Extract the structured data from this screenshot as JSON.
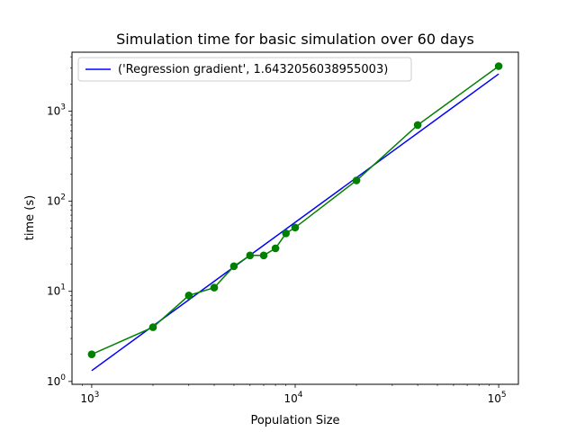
{
  "chart_data": {
    "type": "line",
    "title": "Simulation time for basic simulation over 60 days",
    "xlabel": "Population Size",
    "ylabel": "time (s)",
    "xscale": "log",
    "yscale": "log",
    "xlim": [
      800,
      125000
    ],
    "ylim": [
      0.93,
      4500
    ],
    "grid": false,
    "legend_position": "top-left",
    "x_ticks": [
      {
        "value": 1000,
        "base": "10",
        "exp": "3"
      },
      {
        "value": 10000,
        "base": "10",
        "exp": "4"
      },
      {
        "value": 100000,
        "base": "10",
        "exp": "5"
      }
    ],
    "y_ticks": [
      {
        "value": 1,
        "base": "10",
        "exp": "0"
      },
      {
        "value": 10,
        "base": "10",
        "exp": "1"
      },
      {
        "value": 100,
        "base": "10",
        "exp": "2"
      },
      {
        "value": 1000,
        "base": "10",
        "exp": "3"
      }
    ],
    "series": [
      {
        "kind": "measured",
        "color": "#008000",
        "marker": "circle",
        "x": [
          1000,
          2000,
          3000,
          4000,
          5000,
          6000,
          7000,
          8000,
          9000,
          10000,
          20000,
          40000,
          100000
        ],
        "y": [
          2.0,
          4.0,
          9.0,
          11.0,
          19.0,
          25.0,
          25.0,
          30.0,
          44.0,
          51.0,
          170.0,
          700.0,
          3150.0
        ]
      },
      {
        "kind": "regression",
        "name": "('Regression gradient', 1.6432056038955003)",
        "color": "#0000ff",
        "x": [
          1000,
          100000
        ],
        "y": [
          1.32,
          2580.0
        ]
      }
    ]
  }
}
